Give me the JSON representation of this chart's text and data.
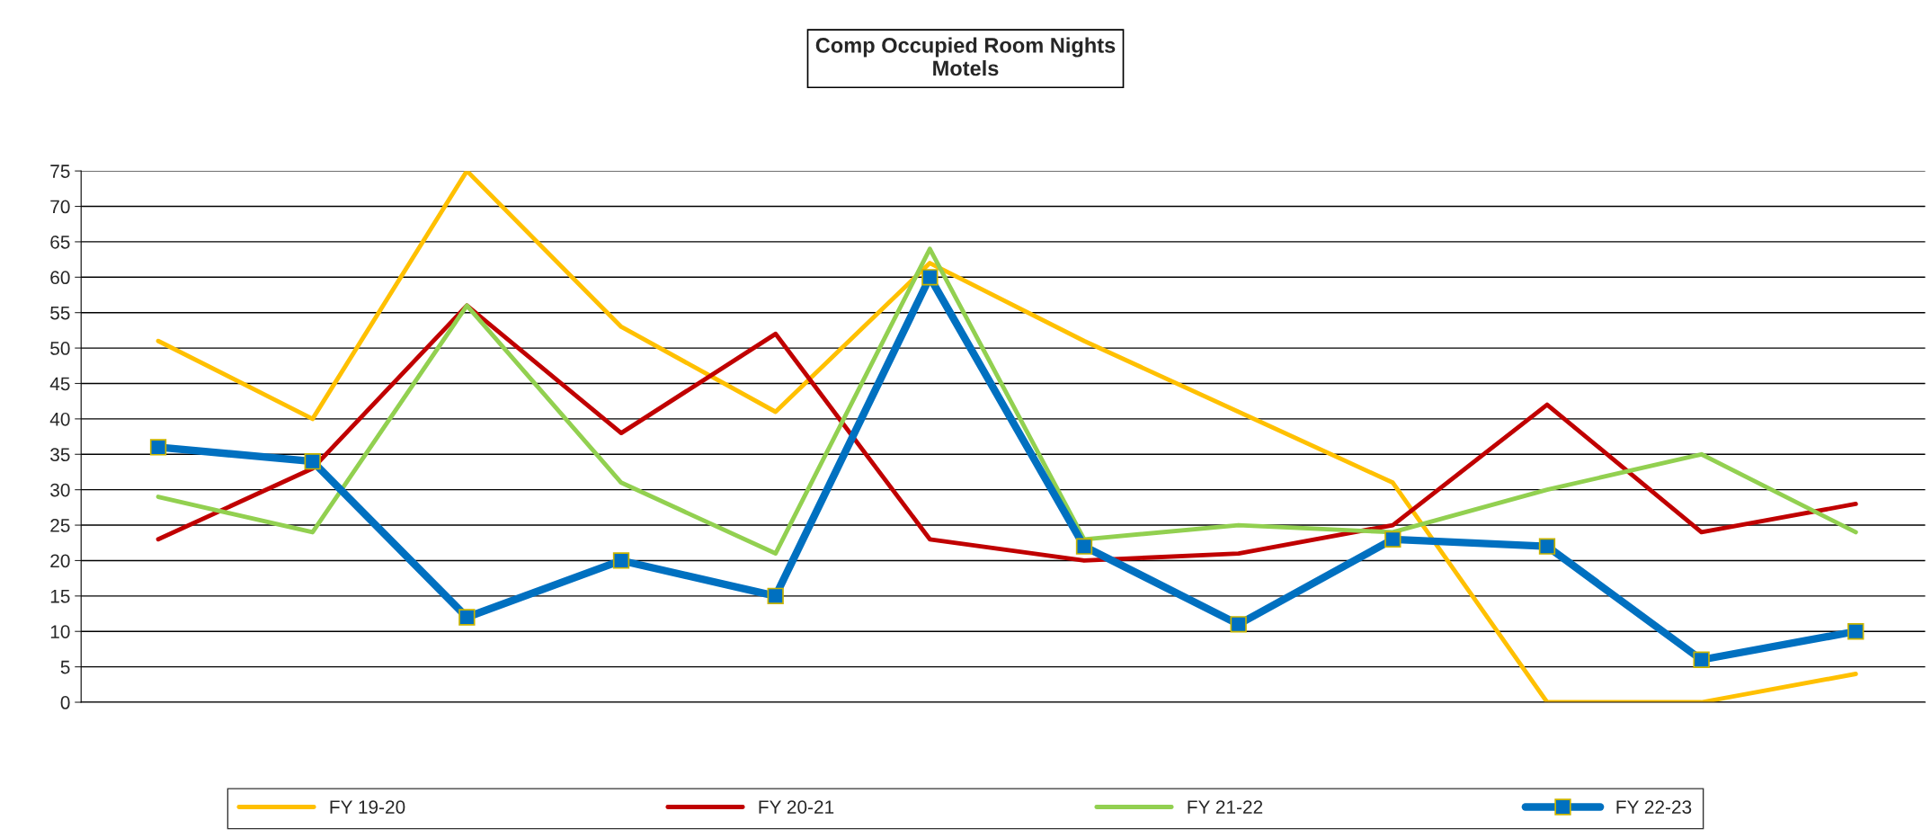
{
  "chart_data": {
    "type": "line",
    "title": "Comp Occupied Room Nights\nMotels",
    "categories": [
      null,
      null,
      null,
      null,
      null,
      null,
      null,
      null,
      null,
      null,
      null,
      null
    ],
    "series": [
      {
        "name": "FY 19-20",
        "color": "#ffc000",
        "values": [
          51,
          40,
          75,
          53,
          41,
          62,
          51,
          41,
          31,
          0,
          0,
          4
        ]
      },
      {
        "name": "FY 20-21",
        "color": "#c00000",
        "values": [
          23,
          33,
          56,
          38,
          52,
          23,
          20,
          21,
          25,
          42,
          24,
          28
        ]
      },
      {
        "name": "FY 21-22",
        "color": "#92d050",
        "values": [
          29,
          24,
          56,
          31,
          21,
          64,
          23,
          25,
          24,
          30,
          35,
          24
        ]
      },
      {
        "name": "FY 22-23",
        "color": "#0070c0",
        "values": [
          36,
          34,
          12,
          20,
          15,
          60,
          22,
          11,
          23,
          22,
          6,
          10
        ],
        "marker": "square"
      }
    ],
    "ylim": [
      0,
      75
    ],
    "yticks": [
      0,
      5,
      10,
      15,
      20,
      25,
      30,
      35,
      40,
      45,
      50,
      55,
      60,
      65,
      70,
      75
    ],
    "grid": "y",
    "legend": "bottom",
    "marker": "none",
    "line_style": "solid"
  }
}
